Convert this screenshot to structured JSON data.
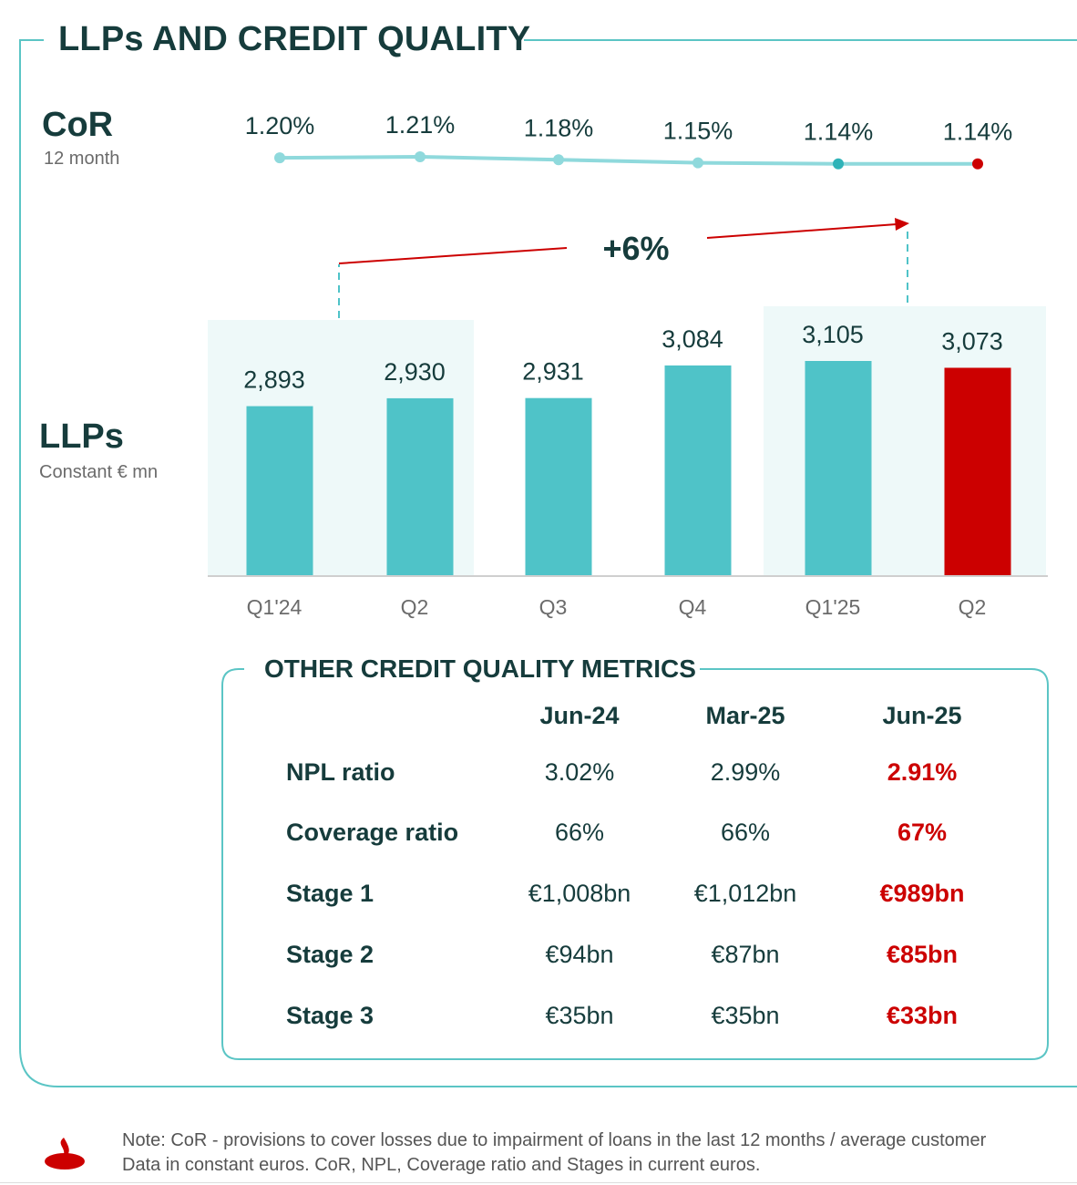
{
  "title": "LLPs AND CREDIT QUALITY",
  "cor": {
    "label": "CoR",
    "sublabel": "12 month",
    "values_text": [
      "1.20%",
      "1.21%",
      "1.18%",
      "1.15%",
      "1.14%",
      "1.14%"
    ]
  },
  "llps": {
    "label": "LLPs",
    "sublabel": "Constant € mn",
    "growth_label": "+6%"
  },
  "colors": {
    "teal": "#4fc3c8",
    "teal_light": "#8fd9dc",
    "red": "#cc0000",
    "dark_green": "#163c3c",
    "frame": "#5bc5c5"
  },
  "chart_data": [
    {
      "type": "line",
      "title": "CoR",
      "subtitle": "12 month",
      "categories": [
        "Q1'24",
        "Q2",
        "Q3",
        "Q4",
        "Q1'25",
        "Q2"
      ],
      "values": [
        1.2,
        1.21,
        1.18,
        1.15,
        1.14,
        1.14
      ],
      "unit": "%",
      "highlight_last": true
    },
    {
      "type": "bar",
      "title": "LLPs",
      "subtitle": "Constant € mn",
      "categories": [
        "Q1'24",
        "Q2",
        "Q3",
        "Q4",
        "Q1'25",
        "Q2"
      ],
      "values": [
        2893,
        2930,
        2931,
        3084,
        3105,
        3073
      ],
      "value_labels": [
        "2,893",
        "2,930",
        "2,931",
        "3,084",
        "3,105",
        "3,073"
      ],
      "annotation": "+6%",
      "highlight_last": true
    }
  ],
  "metrics": {
    "title": "OTHER CREDIT QUALITY METRICS",
    "columns": [
      "Jun-24",
      "Mar-25",
      "Jun-25"
    ],
    "rows": [
      {
        "label": "NPL ratio",
        "values": [
          "3.02%",
          "2.99%",
          "2.91%"
        ]
      },
      {
        "label": "Coverage ratio",
        "values": [
          "66%",
          "66%",
          "67%"
        ]
      },
      {
        "label": "Stage 1",
        "values": [
          "€1,008bn",
          "€1,012bn",
          "€989bn"
        ]
      },
      {
        "label": "Stage 2",
        "values": [
          "€94bn",
          "€87bn",
          "€85bn"
        ]
      },
      {
        "label": "Stage 3",
        "values": [
          "€35bn",
          "€35bn",
          "€33bn"
        ]
      }
    ]
  },
  "note": {
    "line1": "Note: CoR - provisions to cover losses due to impairment of loans in the last 12 months / average customer",
    "line2": "Data in constant euros. CoR, NPL, Coverage ratio and Stages in current euros."
  },
  "logo": {
    "icon": "santander-flame-icon"
  }
}
